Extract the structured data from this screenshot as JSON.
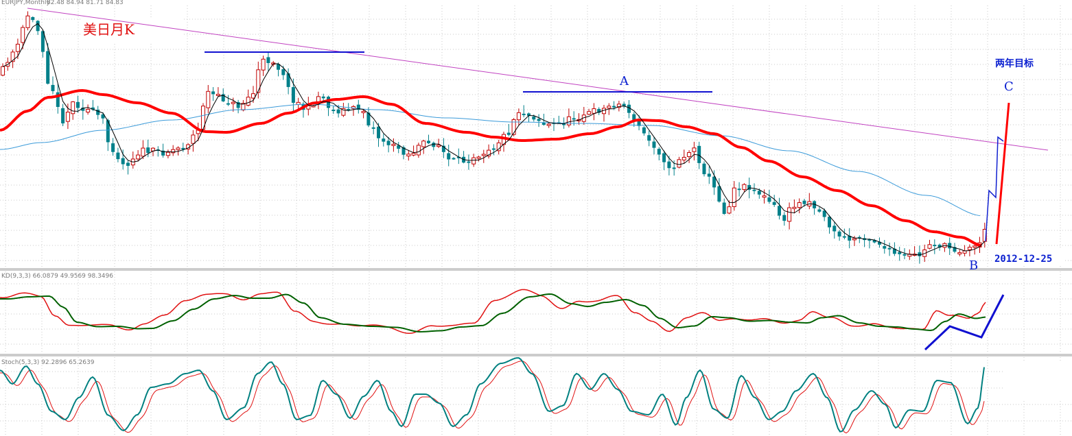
{
  "chart_data": {
    "type": "candlestick",
    "symbol": "EURJPY,Monthly",
    "header_values": "82.48 84.94 81.71 84.83",
    "title": "美日月K",
    "timeframe": "Monthly",
    "annotations": {
      "A": "A",
      "B": "B",
      "C": "C",
      "target": "两年目标",
      "date": "2012-12-25"
    },
    "panels": [
      {
        "name": "price",
        "series": [
          {
            "name": "candles",
            "color_up": "#c00000",
            "color_down": "#00808a"
          },
          {
            "name": "MA-short-black",
            "color": "#000000"
          },
          {
            "name": "MA-mid-red",
            "color": "#ff0000"
          },
          {
            "name": "MA-long-blue",
            "color": "#3a9ad9"
          }
        ],
        "trendlines": [
          {
            "name": "resistance",
            "color": "#c040c0"
          },
          {
            "name": "peak-left",
            "color": "#1010d0"
          },
          {
            "name": "peak-A",
            "color": "#1010d0"
          },
          {
            "name": "projection-up",
            "color": "#ff0000"
          },
          {
            "name": "projection-path",
            "color": "#1020d0"
          }
        ]
      },
      {
        "name": "KD",
        "label": "KD(9,3,3) 66.0879 49.9569 98.3496",
        "series": [
          {
            "name": "K",
            "color": "#e01010"
          },
          {
            "name": "D",
            "color": "#006000"
          }
        ]
      },
      {
        "name": "Stoch",
        "label": "Stoch(5,3,3) 92.2896 65.2639",
        "series": [
          {
            "name": "main",
            "color": "#008080"
          },
          {
            "name": "signal",
            "color": "#e01010"
          }
        ]
      }
    ]
  }
}
